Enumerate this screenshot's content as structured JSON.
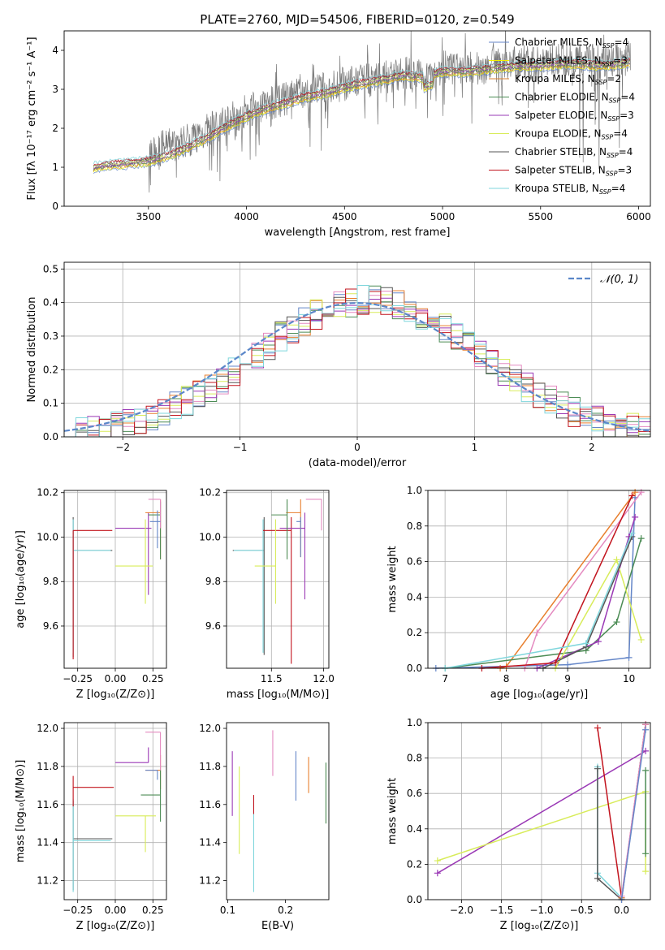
{
  "figure": {
    "title": "PLATE=2760, MJD=54506, FIBERID=0120, z=0.549"
  },
  "chart_data": [
    {
      "id": "spectrum",
      "type": "line",
      "xlabel": "wavelength [Angstrom, rest frame]",
      "ylabel": "Flux [fλ 10⁻¹⁷ erg cm⁻² s⁻¹ A⁻¹]",
      "xlim": [
        3070,
        6060
      ],
      "ylim": [
        0,
        4.5
      ],
      "xticks": [
        3500,
        4000,
        4500,
        5000,
        5500,
        6000
      ],
      "yticks": [
        0,
        1,
        2,
        3,
        4
      ],
      "grid": false,
      "legend_position": "top-right",
      "data_x": [
        3220,
        3300,
        3400,
        3500,
        3580,
        3650,
        3700,
        3800,
        3900,
        4000,
        4100,
        4200,
        4300,
        4400,
        4500,
        4600,
        4700,
        4800,
        4900,
        5000,
        5100,
        5200,
        5300,
        5400,
        5500,
        5600,
        5700,
        5800,
        5900,
        5960
      ],
      "data_y": [
        0.95,
        1.05,
        1.1,
        1.2,
        1.55,
        1.6,
        1.7,
        1.95,
        2.2,
        2.45,
        2.6,
        2.75,
        2.9,
        3.0,
        3.15,
        3.2,
        3.3,
        3.4,
        3.35,
        3.55,
        3.5,
        3.55,
        3.65,
        3.7,
        3.65,
        3.8,
        3.8,
        3.7,
        3.75,
        3.8
      ],
      "model_x": [
        3220,
        3300,
        3400,
        3500,
        3600,
        3700,
        3800,
        3900,
        4000,
        4100,
        4200,
        4300,
        4400,
        4500,
        4600,
        4700,
        4800,
        4900,
        5000,
        5100,
        5200,
        5300,
        5400,
        5500,
        5600,
        5700,
        5800,
        5900,
        5960
      ],
      "model_y": [
        1.0,
        1.05,
        1.1,
        1.15,
        1.3,
        1.5,
        1.75,
        2.05,
        2.3,
        2.5,
        2.65,
        2.8,
        2.9,
        3.05,
        3.15,
        3.25,
        3.35,
        3.3,
        3.45,
        3.45,
        3.5,
        3.55,
        3.6,
        3.6,
        3.65,
        3.65,
        3.6,
        3.65,
        3.7
      ],
      "series": [
        {
          "name": "Chabrier MILES, N",
          "sub": "SSP",
          "suffix": "=4",
          "color": "#6486c8"
        },
        {
          "name": "Salpeter MILES, N",
          "sub": "SSP",
          "suffix": "=3",
          "color": "#f2f200"
        },
        {
          "name": "Kroupa MILES, N",
          "sub": "SSP",
          "suffix": "=2",
          "color": "#d98031"
        },
        {
          "name": "Chabrier ELODIE, N",
          "sub": "SSP",
          "suffix": "=4",
          "color": "#4c8c55"
        },
        {
          "name": "Salpeter ELODIE, N",
          "sub": "SSP",
          "suffix": "=3",
          "color": "#9a38b5"
        },
        {
          "name": "Kroupa ELODIE, N",
          "sub": "SSP",
          "suffix": "=4",
          "color": "#d8ec5a"
        },
        {
          "name": "Chabrier STELIB, N",
          "sub": "SSP",
          "suffix": "=4",
          "color": "#555555"
        },
        {
          "name": "Salpeter STELIB, N",
          "sub": "SSP",
          "suffix": "=3",
          "color": "#c2141e"
        },
        {
          "name": "Kroupa STELIB, N",
          "sub": "SSP",
          "suffix": "=4",
          "color": "#7fd6dc"
        }
      ]
    },
    {
      "id": "residuals",
      "type": "histogram",
      "xlabel": "(data-model)/error",
      "ylabel": "Normed distribution",
      "xlim": [
        -2.5,
        2.5
      ],
      "ylim": [
        0,
        0.52
      ],
      "xticks": [
        -2,
        -1,
        0,
        1,
        2
      ],
      "yticks": [
        0.0,
        0.1,
        0.2,
        0.3,
        0.4,
        0.5
      ],
      "grid": true,
      "legend_position": "top-right",
      "legend_label": "𝒩(0, 1)",
      "gaussian_color": "#5b87c9",
      "bin_edges_start": -2.5,
      "bin_width": 0.1,
      "series_colors": [
        "#6486c8",
        "#e87f2e",
        "#4c8c55",
        "#9a38b5",
        "#d8ec5a",
        "#e48ac0",
        "#555555",
        "#c2141e",
        "#7fd6dc"
      ]
    },
    {
      "id": "age-vs-Z",
      "type": "errorbar",
      "xlabel": "Z [log₁₀(Z/Z⊙)]",
      "ylabel": "age  [log₁₀(age/yr)]",
      "xlim": [
        -0.34,
        0.34
      ],
      "ylim": [
        9.41,
        10.21
      ],
      "xticks": [
        -0.25,
        0.0,
        0.25
      ],
      "xticklabels": [
        "−0.25",
        "0.00",
        "0.25"
      ],
      "yticks": [
        9.6,
        9.8,
        10.0,
        10.2
      ],
      "grid": true,
      "points": [
        {
          "x": -0.28,
          "y": 9.94,
          "xerr": [
            0.0,
            0.26
          ],
          "yerr": [
            0.48,
            0.15
          ],
          "color": "#555555"
        },
        {
          "x": -0.28,
          "y": 9.94,
          "xerr": [
            0.0,
            0.25
          ],
          "yerr": [
            0.46,
            0.14
          ],
          "color": "#7fd6dc"
        },
        {
          "x": -0.28,
          "y": 10.03,
          "xerr": [
            0.0,
            0.26
          ],
          "yerr": [
            0.58,
            0.0
          ],
          "color": "#c2141e"
        },
        {
          "x": 0.22,
          "y": 10.04,
          "xerr": [
            0.22,
            0.02
          ],
          "yerr": [
            0.3,
            0.07
          ],
          "color": "#9a38b5"
        },
        {
          "x": 0.2,
          "y": 9.87,
          "xerr": [
            0.2,
            0.05
          ],
          "yerr": [
            0.17,
            0.21
          ],
          "color": "#d8ec5a"
        },
        {
          "x": 0.3,
          "y": 10.11,
          "xerr": [
            0.1,
            0.0
          ],
          "yerr": [
            0.21,
            0.06
          ],
          "color": "#e87f2e"
        },
        {
          "x": 0.3,
          "y": 10.1,
          "xerr": [
            0.08,
            0.0
          ],
          "yerr": [
            0.2,
            0.06
          ],
          "color": "#4c8c55"
        },
        {
          "x": 0.3,
          "y": 10.17,
          "xerr": [
            0.08,
            0.0
          ],
          "yerr": [
            0.13,
            0.0
          ],
          "color": "#e48ac0"
        },
        {
          "x": 0.28,
          "y": 10.07,
          "xerr": [
            0.05,
            0.02
          ],
          "yerr": [
            0.12,
            0.05
          ],
          "color": "#6486c8"
        }
      ]
    },
    {
      "id": "age-vs-mass",
      "type": "errorbar",
      "xlabel": "mass [log₁₀(M/M⊙)]",
      "ylabel": "",
      "xlim": [
        11.07,
        12.05
      ],
      "ylim": [
        9.41,
        10.21
      ],
      "xticks": [
        11.5,
        12.0
      ],
      "xticklabels": [
        "11.5",
        "12.0"
      ],
      "yticks": [
        9.6,
        9.8,
        10.0,
        10.2
      ],
      "grid": true,
      "points": [
        {
          "x": 11.43,
          "y": 9.94,
          "xerr": [
            0.3,
            0.0
          ],
          "yerr": [
            0.47,
            0.15
          ],
          "color": "#555555"
        },
        {
          "x": 11.42,
          "y": 9.94,
          "xerr": [
            0.28,
            0.0
          ],
          "yerr": [
            0.46,
            0.14
          ],
          "color": "#7fd6dc"
        },
        {
          "x": 11.69,
          "y": 10.03,
          "xerr": [
            0.27,
            0.0
          ],
          "yerr": [
            0.6,
            0.06
          ],
          "color": "#c2141e"
        },
        {
          "x": 11.82,
          "y": 10.04,
          "xerr": [
            0.24,
            0.0
          ],
          "yerr": [
            0.32,
            0.07
          ],
          "color": "#9a38b5"
        },
        {
          "x": 11.54,
          "y": 9.87,
          "xerr": [
            0.2,
            0.0
          ],
          "yerr": [
            0.17,
            0.21
          ],
          "color": "#d8ec5a"
        },
        {
          "x": 11.78,
          "y": 10.11,
          "xerr": [
            0.14,
            0.0
          ],
          "yerr": [
            0.2,
            0.06
          ],
          "color": "#e87f2e"
        },
        {
          "x": 11.65,
          "y": 10.1,
          "xerr": [
            0.15,
            0.0
          ],
          "yerr": [
            0.2,
            0.07
          ],
          "color": "#4c8c55"
        },
        {
          "x": 11.98,
          "y": 10.17,
          "xerr": [
            0.15,
            0.0
          ],
          "yerr": [
            0.14,
            0.0
          ],
          "color": "#e48ac0"
        },
        {
          "x": 11.78,
          "y": 10.07,
          "xerr": [
            0.04,
            0.0
          ],
          "yerr": [
            0.16,
            0.02
          ],
          "color": "#6486c8"
        }
      ]
    },
    {
      "id": "weight-vs-age",
      "type": "line",
      "xlabel": "age  [log₁₀(age/yr)]",
      "ylabel": "mass weight",
      "xlim": [
        6.72,
        10.35
      ],
      "ylim": [
        0,
        1.0
      ],
      "xticks": [
        7,
        8,
        9,
        10
      ],
      "xticklabels": [
        "7",
        "8",
        "9",
        "10"
      ],
      "yticks": [
        0.0,
        0.2,
        0.4,
        0.6,
        0.8,
        1.0
      ],
      "grid": true,
      "series": [
        {
          "color": "#6486c8",
          "x": [
            6.85,
            9.0,
            10.0,
            10.1
          ],
          "y": [
            0.0,
            0.02,
            0.06,
            0.96
          ]
        },
        {
          "color": "#e87f2e",
          "x": [
            7.9,
            8.0,
            10.1
          ],
          "y": [
            0.0,
            0.01,
            0.99
          ]
        },
        {
          "color": "#4c8c55",
          "x": [
            7.0,
            9.3,
            9.8,
            10.2
          ],
          "y": [
            0.0,
            0.1,
            0.26,
            0.73
          ]
        },
        {
          "color": "#9a38b5",
          "x": [
            8.5,
            9.5,
            10.0,
            10.1
          ],
          "y": [
            0.0,
            0.15,
            0.74,
            0.85
          ]
        },
        {
          "color": "#d8ec5a",
          "x": [
            8.8,
            9.8,
            10.2
          ],
          "y": [
            0.0,
            0.61,
            0.16
          ]
        },
        {
          "color": "#e48ac0",
          "x": [
            8.3,
            8.5,
            10.2
          ],
          "y": [
            0.0,
            0.2,
            0.99
          ]
        },
        {
          "color": "#555555",
          "x": [
            8.6,
            9.3,
            10.05
          ],
          "y": [
            0.0,
            0.12,
            0.74
          ]
        },
        {
          "color": "#c2141e",
          "x": [
            7.6,
            8.8,
            10.05
          ],
          "y": [
            0.0,
            0.03,
            0.97
          ]
        },
        {
          "color": "#7fd6dc",
          "x": [
            7.0,
            9.3,
            10.05
          ],
          "y": [
            0.0,
            0.14,
            0.76
          ]
        }
      ]
    },
    {
      "id": "mass-vs-Z",
      "type": "errorbar",
      "xlabel": "Z [log₁₀(Z/Z⊙)]",
      "ylabel": "mass [log₁₀(M/M⊙)]",
      "xlim": [
        -0.34,
        0.34
      ],
      "ylim": [
        11.1,
        12.03
      ],
      "xticks": [
        -0.25,
        0.0,
        0.25
      ],
      "xticklabels": [
        "−0.25",
        "0.00",
        "0.25"
      ],
      "yticks": [
        11.2,
        11.4,
        11.6,
        11.8,
        12.0
      ],
      "grid": true,
      "points": [
        {
          "x": -0.28,
          "y": 11.42,
          "xerr": [
            0.0,
            0.26
          ],
          "yerr": [
            0.27,
            0.2
          ],
          "color": "#555555"
        },
        {
          "x": -0.28,
          "y": 11.41,
          "xerr": [
            0.0,
            0.25
          ],
          "yerr": [
            0.27,
            0.22
          ],
          "color": "#7fd6dc"
        },
        {
          "x": -0.28,
          "y": 11.69,
          "xerr": [
            0.0,
            0.27
          ],
          "yerr": [
            0.1,
            0.06
          ],
          "color": "#c2141e"
        },
        {
          "x": 0.22,
          "y": 11.82,
          "xerr": [
            0.22,
            0.0
          ],
          "yerr": [
            0.0,
            0.08
          ],
          "color": "#9a38b5"
        },
        {
          "x": 0.2,
          "y": 11.54,
          "xerr": [
            0.2,
            0.07
          ],
          "yerr": [
            0.19,
            0.0
          ],
          "color": "#d8ec5a"
        },
        {
          "x": 0.3,
          "y": 11.78,
          "xerr": [
            0.1,
            0.0
          ],
          "yerr": [
            0.1,
            0.08
          ],
          "color": "#e87f2e"
        },
        {
          "x": 0.3,
          "y": 11.65,
          "xerr": [
            0.13,
            0.0
          ],
          "yerr": [
            0.14,
            0.13
          ],
          "color": "#4c8c55"
        },
        {
          "x": 0.3,
          "y": 11.98,
          "xerr": [
            0.1,
            0.0
          ],
          "yerr": [
            0.2,
            0.0
          ],
          "color": "#e48ac0"
        },
        {
          "x": 0.28,
          "y": 11.78,
          "xerr": [
            0.08,
            0.0
          ],
          "yerr": [
            0.05,
            0.0
          ],
          "color": "#6486c8"
        }
      ]
    },
    {
      "id": "mass-vs-EBV",
      "type": "errorbar",
      "xlabel": "E(B-V)",
      "ylabel": "",
      "xlim": [
        0.098,
        0.275
      ],
      "ylim": [
        11.1,
        12.03
      ],
      "xticks": [
        0.1,
        0.2
      ],
      "xticklabels": [
        "0.1",
        "0.2"
      ],
      "yticks": [
        11.2,
        11.4,
        11.6,
        11.8,
        12.0
      ],
      "grid": false,
      "points": [
        {
          "x": 0.108,
          "y": 11.71,
          "xerr": [
            0,
            0
          ],
          "yerr": [
            0.17,
            0.17
          ],
          "color": "#9a38b5"
        },
        {
          "x": 0.12,
          "y": 11.58,
          "xerr": [
            0,
            0
          ],
          "yerr": [
            0.24,
            0.22
          ],
          "color": "#d8ec5a"
        },
        {
          "x": 0.145,
          "y": 11.42,
          "xerr": [
            0,
            0
          ],
          "yerr": [
            0.28,
            0.22
          ],
          "color": "#7fd6dc"
        },
        {
          "x": 0.145,
          "y": 11.6,
          "xerr": [
            0,
            0
          ],
          "yerr": [
            0.05,
            0.05
          ],
          "color": "#c2141e"
        },
        {
          "x": 0.178,
          "y": 11.87,
          "xerr": [
            0,
            0
          ],
          "yerr": [
            0.12,
            0.12
          ],
          "color": "#e48ac0"
        },
        {
          "x": 0.218,
          "y": 11.75,
          "xerr": [
            0,
            0
          ],
          "yerr": [
            0.13,
            0.13
          ],
          "color": "#6486c8"
        },
        {
          "x": 0.24,
          "y": 11.76,
          "xerr": [
            0,
            0
          ],
          "yerr": [
            0.1,
            0.09
          ],
          "color": "#e87f2e"
        },
        {
          "x": 0.27,
          "y": 11.66,
          "xerr": [
            0,
            0
          ],
          "yerr": [
            0.16,
            0.16
          ],
          "color": "#4c8c55"
        }
      ]
    },
    {
      "id": "weight-vs-Z",
      "type": "line",
      "xlabel": "Z [log₁₀(Z/Z⊙)]",
      "ylabel": "mass weight",
      "xlim": [
        -2.42,
        0.36
      ],
      "ylim": [
        0,
        1.0
      ],
      "xticks": [
        -2.0,
        -1.5,
        -1.0,
        -0.5,
        0.0
      ],
      "xticklabels": [
        "−2.0",
        "−1.5",
        "−1.0",
        "−0.5",
        "0.0"
      ],
      "yticks": [
        0.0,
        0.2,
        0.4,
        0.6,
        0.8,
        1.0
      ],
      "grid": true,
      "series": [
        {
          "color": "#9a38b5",
          "x": [
            -2.3,
            0.3
          ],
          "y": [
            0.15,
            0.84
          ]
        },
        {
          "color": "#d8ec5a",
          "x": [
            -2.3,
            0.3,
            0.3
          ],
          "y": [
            0.22,
            0.61,
            0.16
          ]
        },
        {
          "color": "#c2141e",
          "x": [
            -0.3,
            0.0,
            0.3
          ],
          "y": [
            0.97,
            0.01,
            0.99
          ]
        },
        {
          "color": "#7fd6dc",
          "x": [
            -0.3,
            -0.3,
            0.0,
            0.3
          ],
          "y": [
            0.75,
            0.15,
            0.01,
            0.99
          ]
        },
        {
          "color": "#555555",
          "x": [
            -0.3,
            -0.3,
            0.0,
            0.3
          ],
          "y": [
            0.74,
            0.12,
            0.0,
            0.99
          ]
        },
        {
          "color": "#e87f2e",
          "x": [
            0.0,
            0.3
          ],
          "y": [
            0.01,
            0.99
          ]
        },
        {
          "color": "#e48ac0",
          "x": [
            0.0,
            0.3
          ],
          "y": [
            0.02,
            0.99
          ]
        },
        {
          "color": "#6486c8",
          "x": [
            0.0,
            0.3
          ],
          "y": [
            0.0,
            0.96
          ]
        },
        {
          "color": "#4c8c55",
          "x": [
            0.3,
            0.3
          ],
          "y": [
            0.26,
            0.73
          ]
        }
      ]
    }
  ]
}
